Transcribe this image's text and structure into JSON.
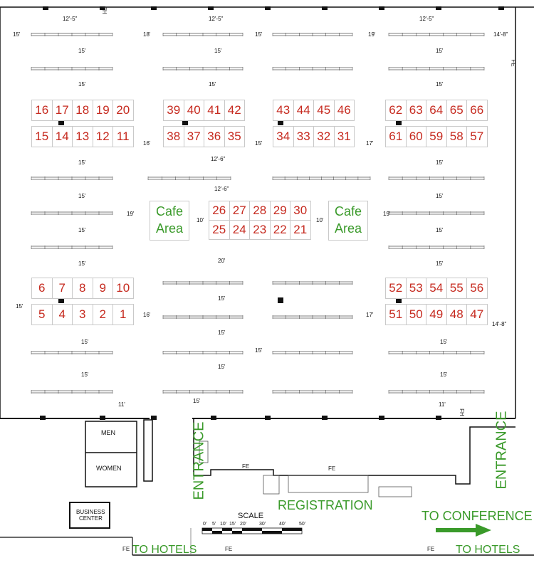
{
  "rows_upper": [
    [
      "16",
      "17",
      "18",
      "19",
      "20"
    ],
    [
      "15",
      "14",
      "13",
      "12",
      "11"
    ],
    [
      "39",
      "40",
      "41",
      "42"
    ],
    [
      "38",
      "37",
      "36",
      "35"
    ],
    [
      "43",
      "44",
      "45",
      "46"
    ],
    [
      "34",
      "33",
      "32",
      "31"
    ],
    [
      "62",
      "63",
      "64",
      "65",
      "66"
    ],
    [
      "61",
      "60",
      "59",
      "58",
      "57"
    ]
  ],
  "rows_middle": [
    [
      "26",
      "27",
      "28",
      "29",
      "30"
    ],
    [
      "25",
      "24",
      "23",
      "22",
      "21"
    ]
  ],
  "rows_lower": [
    [
      "6",
      "7",
      "8",
      "9",
      "10"
    ],
    [
      "5",
      "4",
      "3",
      "2",
      "1"
    ],
    [
      "52",
      "53",
      "54",
      "55",
      "56"
    ],
    [
      "51",
      "50",
      "49",
      "48",
      "47"
    ]
  ],
  "cafe": [
    "Cafe",
    "Area"
  ],
  "labels": {
    "entrance": "ENTRANCE",
    "registration": "REGISTRATION",
    "to_conference": "TO CONFERENCE",
    "to_hotels": "TO HOTELS",
    "scale": "SCALE",
    "men": "MEN",
    "women": "WOMEN",
    "business_center": [
      "BUSINESS",
      "CENTER"
    ],
    "fh": "FH",
    "fe": "FE"
  },
  "dimensions": {
    "d12_5": "12'-5\"",
    "d15": "15'",
    "d18": "18'",
    "d19": "19'",
    "d16": "16'",
    "d17": "17'",
    "d14_8": "14'-8\"",
    "d12_6": "12'-6\"",
    "d10": "10'",
    "d20": "20'",
    "d11": "11'"
  },
  "scale_ticks": [
    "0'",
    "5'",
    "10'",
    "15'",
    "20'",
    "30'",
    "40'",
    "50'"
  ],
  "table_tag": "6T",
  "colors": {
    "booth_text": "#c62a1f",
    "green": "#3a9a2a",
    "wall": "#111111"
  }
}
